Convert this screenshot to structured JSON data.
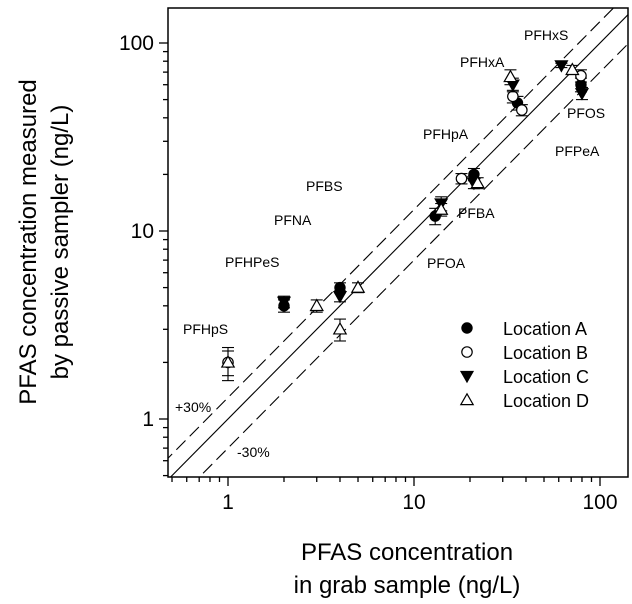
{
  "chart_data": {
    "type": "scatter",
    "xlabel": [
      "PFAS concentration",
      "in grab sample (ng/L)"
    ],
    "ylabel": [
      "PFAS concentration measured",
      "by passive sampler (ng/L)"
    ],
    "xscale": "log",
    "yscale": "log",
    "xlim": [
      0.5,
      140
    ],
    "ylim": [
      0.48,
      160
    ],
    "x_ticks": [
      1,
      10,
      100
    ],
    "x_tick_labels": [
      "1",
      "10",
      "100"
    ],
    "y_ticks": [
      1,
      10,
      100
    ],
    "y_tick_labels": [
      "1",
      "10",
      "100"
    ],
    "grid": false,
    "legend_placement": "bottom-right",
    "reference_lines": [
      {
        "label": "",
        "factor": 1.0
      },
      {
        "label": "+30%",
        "factor": 1.3
      },
      {
        "label": "-30%",
        "factor": 0.7
      }
    ],
    "annotations": [
      "PFHxS",
      "PFHxA",
      "PFOS",
      "PFPeA",
      "PFHpA",
      "PFBS",
      "PFNA",
      "PFBA",
      "PFHPeS",
      "PFOA",
      "PFHpS"
    ],
    "series": [
      {
        "name": "Location A",
        "marker": "filled-circle",
        "points": [
          {
            "x": 2,
            "y": 4.0,
            "err": 0.3
          },
          {
            "x": 4,
            "y": 5.0,
            "err": 0.3
          },
          {
            "x": 13,
            "y": 12,
            "err": 1.2
          },
          {
            "x": 21,
            "y": 20,
            "err": 1.5
          },
          {
            "x": 36,
            "y": 48,
            "err": 4
          },
          {
            "x": 79,
            "y": 60,
            "err": 5
          }
        ]
      },
      {
        "name": "Location B",
        "marker": "open-circle",
        "points": [
          {
            "x": 1,
            "y": 2.0,
            "err": 0.3
          },
          {
            "x": 18,
            "y": 19,
            "err": 1.2
          },
          {
            "x": 34,
            "y": 52,
            "err": 4
          },
          {
            "x": 38,
            "y": 44,
            "err": 3
          },
          {
            "x": 79,
            "y": 67,
            "err": 5
          }
        ]
      },
      {
        "name": "Location C",
        "marker": "filled-triangle-down",
        "points": [
          {
            "x": 2,
            "y": 4.2,
            "err": 0.3
          },
          {
            "x": 4,
            "y": 4.5,
            "err": 0.3
          },
          {
            "x": 14,
            "y": 14,
            "err": 1.2
          },
          {
            "x": 21,
            "y": 18,
            "err": 1.2
          },
          {
            "x": 34,
            "y": 60,
            "err": 5
          },
          {
            "x": 62,
            "y": 76,
            "err": 2
          },
          {
            "x": 80,
            "y": 54,
            "err": 4
          }
        ]
      },
      {
        "name": "Location D",
        "marker": "open-triangle-up",
        "points": [
          {
            "x": 1,
            "y": 2.0,
            "err": 0.4
          },
          {
            "x": 3,
            "y": 4.0,
            "err": 0.3
          },
          {
            "x": 4,
            "y": 3.0,
            "err": 0.4
          },
          {
            "x": 5,
            "y": 5.0,
            "err": 0.3
          },
          {
            "x": 14,
            "y": 13,
            "err": 1.0
          },
          {
            "x": 22,
            "y": 18,
            "err": 1.2
          },
          {
            "x": 33,
            "y": 66,
            "err": 6
          },
          {
            "x": 71,
            "y": 72,
            "err": 4
          }
        ]
      }
    ]
  }
}
